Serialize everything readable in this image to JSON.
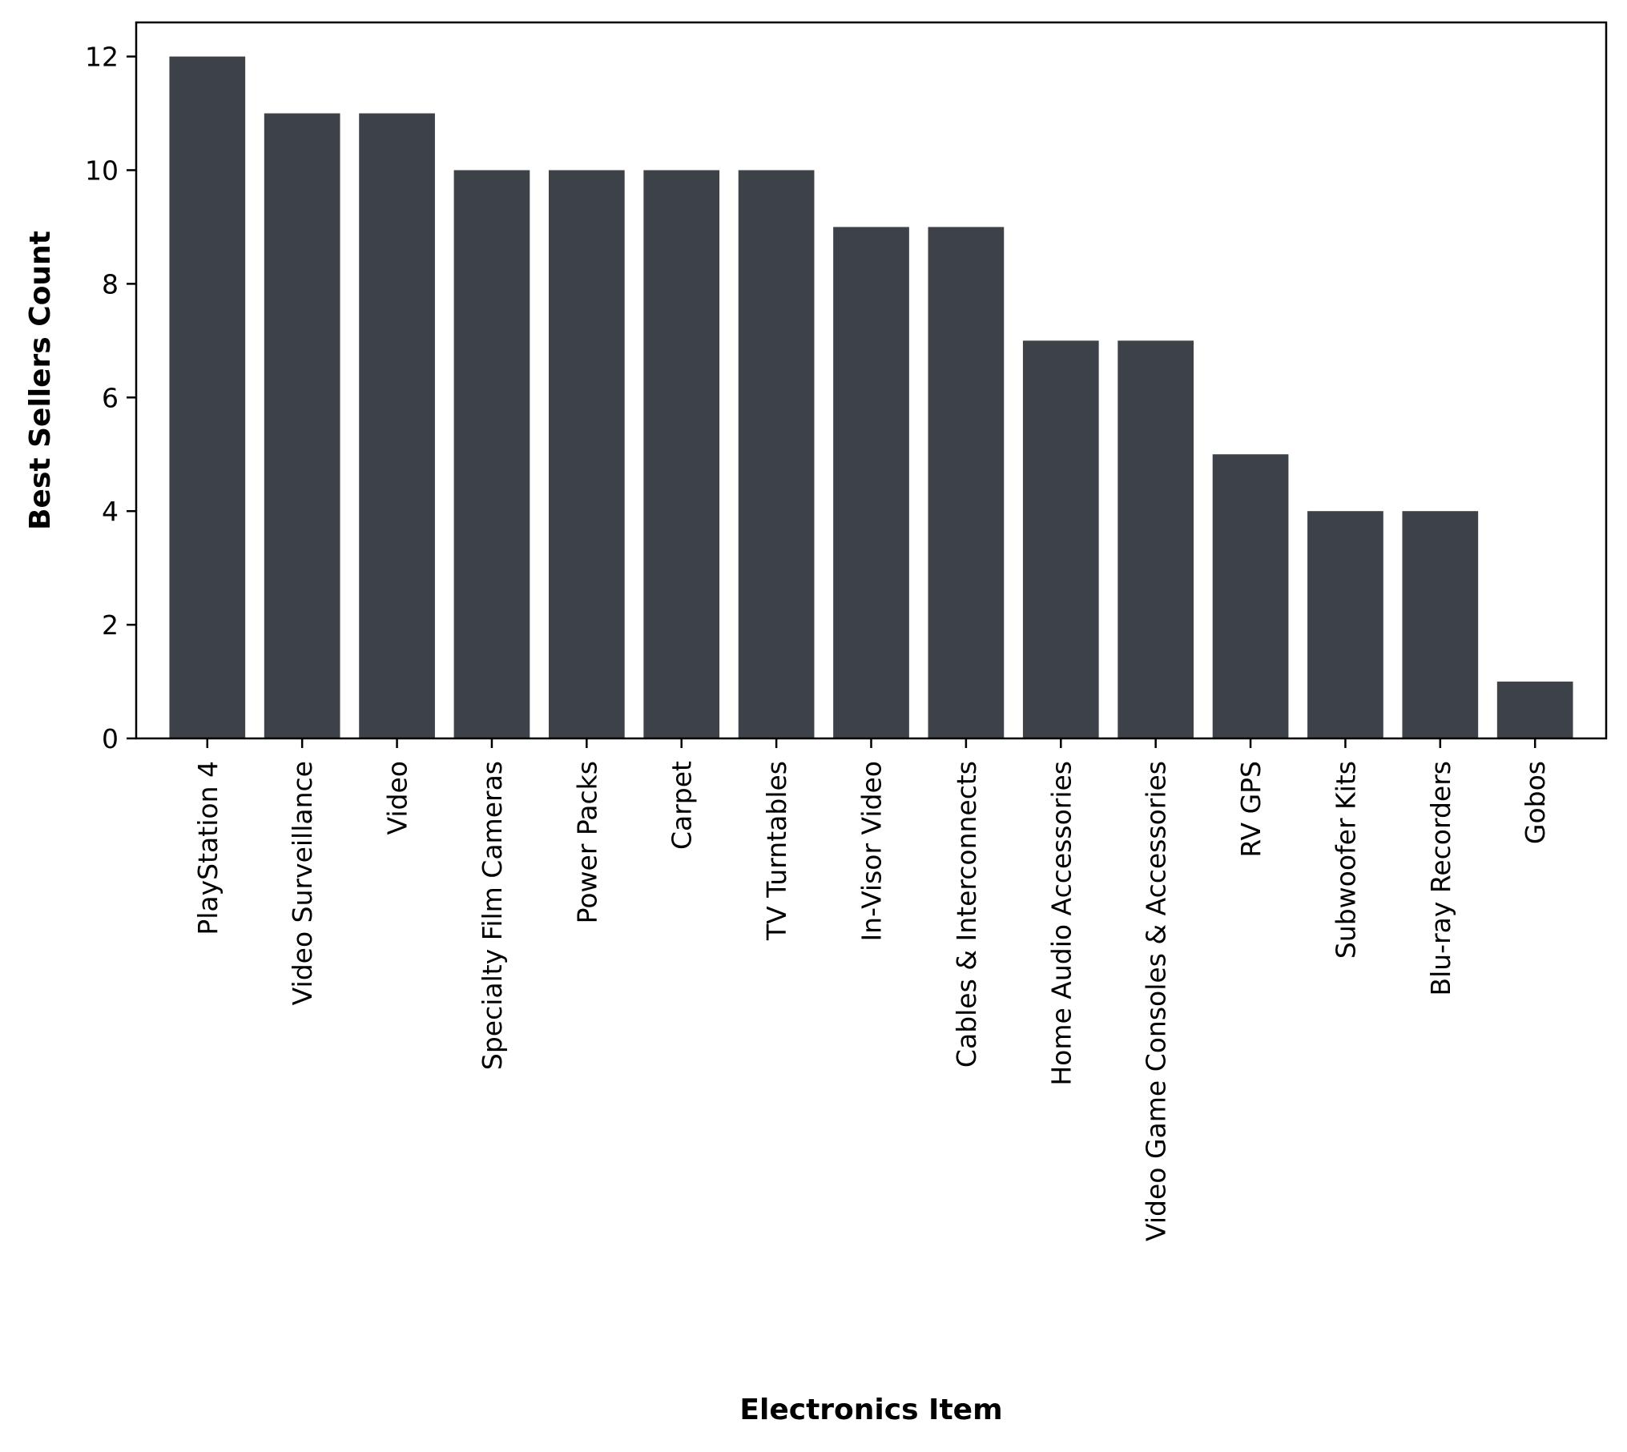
{
  "chart_data": {
    "type": "bar",
    "title": "",
    "xlabel": "Electronics Item",
    "ylabel": "Best Sellers Count",
    "categories": [
      "PlayStation 4",
      "Video Surveillance",
      "Video",
      "Specialty Film Cameras",
      "Power Packs",
      "Carpet",
      "TV Turntables",
      "In-Visor Video",
      "Cables & Interconnects",
      "Home Audio Accessories",
      "Video Game Consoles & Accessories",
      "RV GPS",
      "Subwoofer Kits",
      "Blu-ray Recorders",
      "Gobos"
    ],
    "values": [
      12,
      11,
      11,
      10,
      10,
      10,
      10,
      9,
      9,
      7,
      7,
      5,
      4,
      4,
      1
    ],
    "ylim": [
      0,
      12.6
    ],
    "yticks": [
      0,
      2,
      4,
      6,
      8,
      10,
      12
    ],
    "grid": false,
    "bar_color": "#3d4148"
  }
}
